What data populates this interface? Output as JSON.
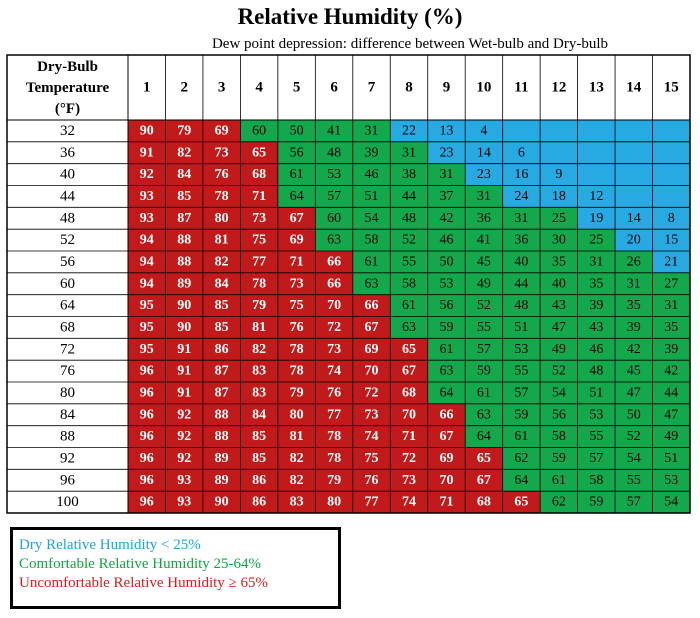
{
  "title": "Relative Humidity (%)",
  "subtitle": "Dew point depression: difference between Wet-bulb and Dry-bulb",
  "colors": {
    "dry": "#27a9e1",
    "comfortable": "#12a84b",
    "uncomfortable": "#c21a1a"
  },
  "chart_data": {
    "type": "table",
    "row_header": [
      "Dry-Bulb",
      "Temperature",
      "(°F)"
    ],
    "columns": [
      "1",
      "2",
      "3",
      "4",
      "5",
      "6",
      "7",
      "8",
      "9",
      "10",
      "11",
      "12",
      "13",
      "14",
      "15"
    ],
    "rows": [
      "32",
      "36",
      "40",
      "44",
      "48",
      "52",
      "56",
      "60",
      "64",
      "68",
      "72",
      "76",
      "80",
      "84",
      "88",
      "92",
      "96",
      "100"
    ],
    "values": [
      [
        90,
        79,
        69,
        60,
        50,
        41,
        31,
        22,
        13,
        4,
        null,
        null,
        null,
        null,
        null
      ],
      [
        91,
        82,
        73,
        65,
        56,
        48,
        39,
        31,
        23,
        14,
        6,
        null,
        null,
        null,
        null
      ],
      [
        92,
        84,
        76,
        68,
        61,
        53,
        46,
        38,
        31,
        23,
        16,
        9,
        null,
        null,
        null
      ],
      [
        93,
        85,
        78,
        71,
        64,
        57,
        51,
        44,
        37,
        31,
        24,
        18,
        12,
        null,
        null
      ],
      [
        93,
        87,
        80,
        73,
        67,
        60,
        54,
        48,
        42,
        36,
        31,
        25,
        19,
        14,
        8
      ],
      [
        94,
        88,
        81,
        75,
        69,
        63,
        58,
        52,
        46,
        41,
        36,
        30,
        25,
        20,
        15
      ],
      [
        94,
        88,
        82,
        77,
        71,
        66,
        61,
        55,
        50,
        45,
        40,
        35,
        31,
        26,
        21
      ],
      [
        94,
        89,
        84,
        78,
        73,
        66,
        63,
        58,
        53,
        49,
        44,
        40,
        35,
        31,
        27
      ],
      [
        95,
        90,
        85,
        79,
        75,
        70,
        66,
        61,
        56,
        52,
        48,
        43,
        39,
        35,
        31
      ],
      [
        95,
        90,
        85,
        81,
        76,
        72,
        67,
        63,
        59,
        55,
        51,
        47,
        43,
        39,
        35
      ],
      [
        95,
        91,
        86,
        82,
        78,
        73,
        69,
        65,
        61,
        57,
        53,
        49,
        46,
        42,
        39
      ],
      [
        96,
        91,
        87,
        83,
        78,
        74,
        70,
        67,
        63,
        59,
        55,
        52,
        48,
        45,
        42
      ],
      [
        96,
        91,
        87,
        83,
        79,
        76,
        72,
        68,
        64,
        61,
        57,
        54,
        51,
        47,
        44
      ],
      [
        96,
        92,
        88,
        84,
        80,
        77,
        73,
        70,
        66,
        63,
        59,
        56,
        53,
        50,
        47
      ],
      [
        96,
        92,
        88,
        85,
        81,
        78,
        74,
        71,
        67,
        64,
        61,
        58,
        55,
        52,
        49
      ],
      [
        96,
        92,
        89,
        85,
        82,
        78,
        75,
        72,
        69,
        65,
        62,
        59,
        57,
        54,
        51
      ],
      [
        96,
        93,
        89,
        86,
        82,
        79,
        76,
        73,
        70,
        67,
        64,
        61,
        58,
        55,
        53
      ],
      [
        96,
        93,
        90,
        86,
        83,
        80,
        77,
        74,
        71,
        68,
        65,
        62,
        59,
        57,
        54
      ]
    ],
    "categories": [
      {
        "label": "Dry Relative Humidity < 25%",
        "range": [
          null,
          25
        ],
        "color_key": "dry"
      },
      {
        "label": "Comfortable Relative Humidity 25-64%",
        "range": [
          25,
          65
        ],
        "color_key": "comfortable"
      },
      {
        "label": "Uncomfortable Relative Humidity ≥ 65%",
        "range": [
          65,
          null
        ],
        "color_key": "uncomfortable"
      }
    ]
  },
  "legend": {
    "dry": "Dry Relative Humidity < 25%",
    "comfortable": "Comfortable Relative Humidity 25-64%",
    "uncomfortable": "Uncomfortable Relative Humidity ≥ 65%"
  }
}
